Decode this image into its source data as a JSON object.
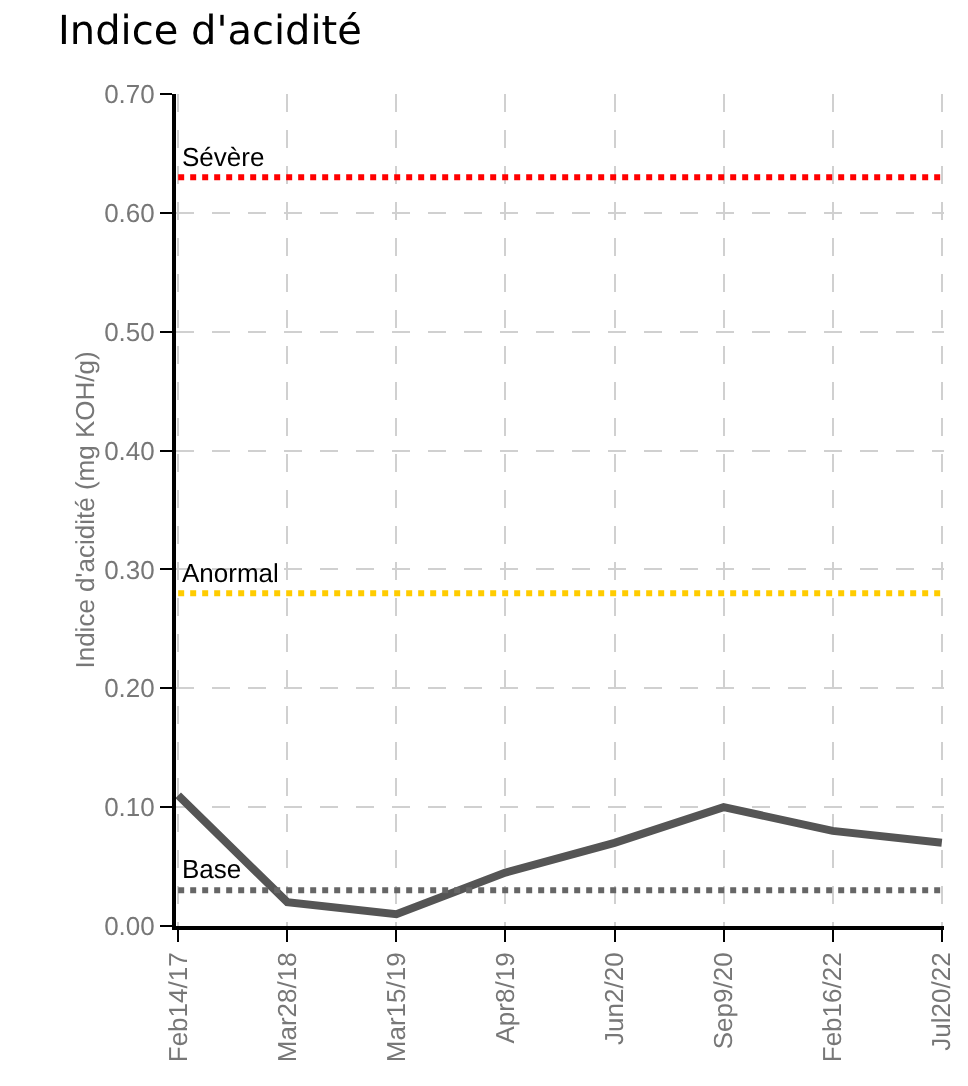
{
  "chart_data": {
    "type": "line",
    "title": "Indice d'acidité",
    "ylabel": "Indice d'acidité (mg KOH/g)",
    "categories": [
      "Feb14/17",
      "Mar28/18",
      "Mar15/19",
      "Apr8/19",
      "Jun2/20",
      "Sep9/20",
      "Feb16/22",
      "Jul20/22"
    ],
    "series": [
      {
        "color": "#555555",
        "values": [
          0.11,
          0.02,
          0.01,
          0.045,
          0.07,
          0.1,
          0.08,
          0.07
        ]
      }
    ],
    "ylim": [
      0,
      0.7
    ],
    "yticks": [
      {
        "value": 0,
        "label": "0.00"
      },
      {
        "value": 0.1,
        "label": "0.10"
      },
      {
        "value": 0.2,
        "label": "0.20"
      },
      {
        "value": 0.3,
        "label": "0.30"
      },
      {
        "value": 0.4,
        "label": "0.40"
      },
      {
        "value": 0.5,
        "label": "0.50"
      },
      {
        "value": 0.6,
        "label": "0.60"
      },
      {
        "value": 0.7,
        "label": "0.70"
      }
    ],
    "ref_lines": [
      {
        "axis": "y",
        "value": 0.63,
        "label": "Sévère",
        "color": "#ff0000",
        "line_style": "dotted"
      },
      {
        "axis": "y",
        "value": 0.28,
        "label": "Anormal",
        "color": "#ffcc00",
        "line_style": "dotted"
      },
      {
        "axis": "y",
        "value": 0.03,
        "label": "Base",
        "color": "#666666",
        "line_style": "dotted"
      }
    ],
    "grid": true,
    "marker": "none",
    "line_style": "solid"
  }
}
